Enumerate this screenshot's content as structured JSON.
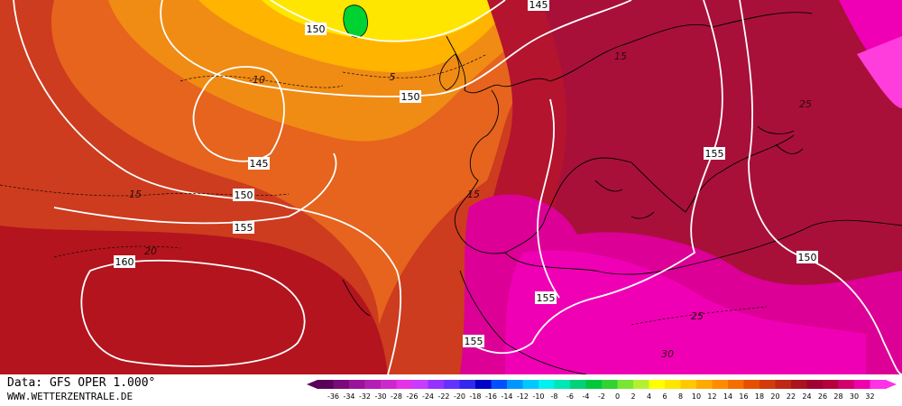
{
  "map": {
    "height_labels": [
      "150",
      "145",
      "150",
      "145",
      "150",
      "155",
      "160",
      "155",
      "155",
      "155",
      "150"
    ],
    "temperature_labels": [
      "-10",
      "5",
      "15",
      "15",
      "15",
      "20",
      "25",
      "25",
      "30"
    ]
  },
  "colorbar": {
    "labels": [
      -36,
      -34,
      -32,
      -30,
      -28,
      -26,
      -24,
      -22,
      -20,
      -18,
      -16,
      -14,
      -12,
      -10,
      -8,
      -6,
      -4,
      -2,
      0,
      2,
      4,
      6,
      8,
      10,
      12,
      14,
      16,
      18,
      20,
      22,
      24,
      26,
      28,
      30,
      32
    ],
    "colors": [
      "#5a005a",
      "#7a0a7a",
      "#9a149a",
      "#b41eb4",
      "#cd28cd",
      "#e632e6",
      "#c83cff",
      "#9632ff",
      "#6432ff",
      "#3228f0",
      "#0000c8",
      "#0050ff",
      "#0096ff",
      "#00c8ff",
      "#00f0f0",
      "#00e6b4",
      "#00d278",
      "#00c83c",
      "#32d232",
      "#78e632",
      "#b4f032",
      "#ffff00",
      "#ffe600",
      "#ffc800",
      "#ffaa00",
      "#ff8c00",
      "#f56e00",
      "#e65000",
      "#d23c0a",
      "#be2814",
      "#aa141e",
      "#a00032",
      "#b4003c",
      "#d2006e",
      "#f000aa",
      "#ff32e6"
    ]
  },
  "footer": {
    "source": "Data: GFS OPER 1.000°",
    "website": "WWW.WETTERZENTRALE.DE"
  }
}
